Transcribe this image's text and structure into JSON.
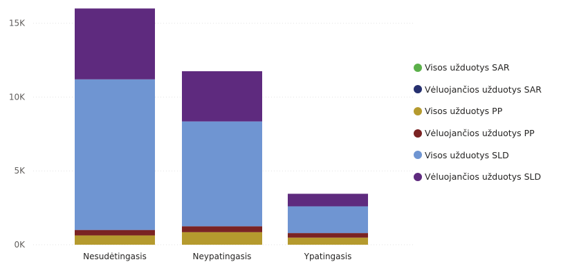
{
  "chart_data": {
    "type": "bar",
    "stacked": true,
    "categories": [
      "Nesudėtingasis",
      "Neypatingasis",
      "Ypatingasis"
    ],
    "y_ticks": [
      "0K",
      "5K",
      "10K",
      "15K"
    ],
    "y_tick_values": [
      0,
      5000,
      10000,
      15000
    ],
    "ylim": [
      0,
      16200
    ],
    "grid": true,
    "legend_position": "right",
    "series": [
      {
        "name": "Visos užduotys SAR",
        "color": "#5BB04A",
        "values": [
          0,
          0,
          0
        ]
      },
      {
        "name": "Vėluojančios užduotys SAR",
        "color": "#26306F",
        "values": [
          0,
          0,
          0
        ]
      },
      {
        "name": "Visos užduotys PP",
        "color": "#B59A2E",
        "values": [
          630,
          850,
          480
        ]
      },
      {
        "name": "Vėluojančios užduotys PP",
        "color": "#7A2323",
        "values": [
          370,
          400,
          310
        ]
      },
      {
        "name": "Visos užduotys SLD",
        "color": "#6F95D2",
        "values": [
          10200,
          7100,
          1810
        ]
      },
      {
        "name": "Vėluojančios užduotys SLD",
        "color": "#5E2A7E",
        "values": [
          4800,
          3400,
          850
        ]
      }
    ]
  }
}
